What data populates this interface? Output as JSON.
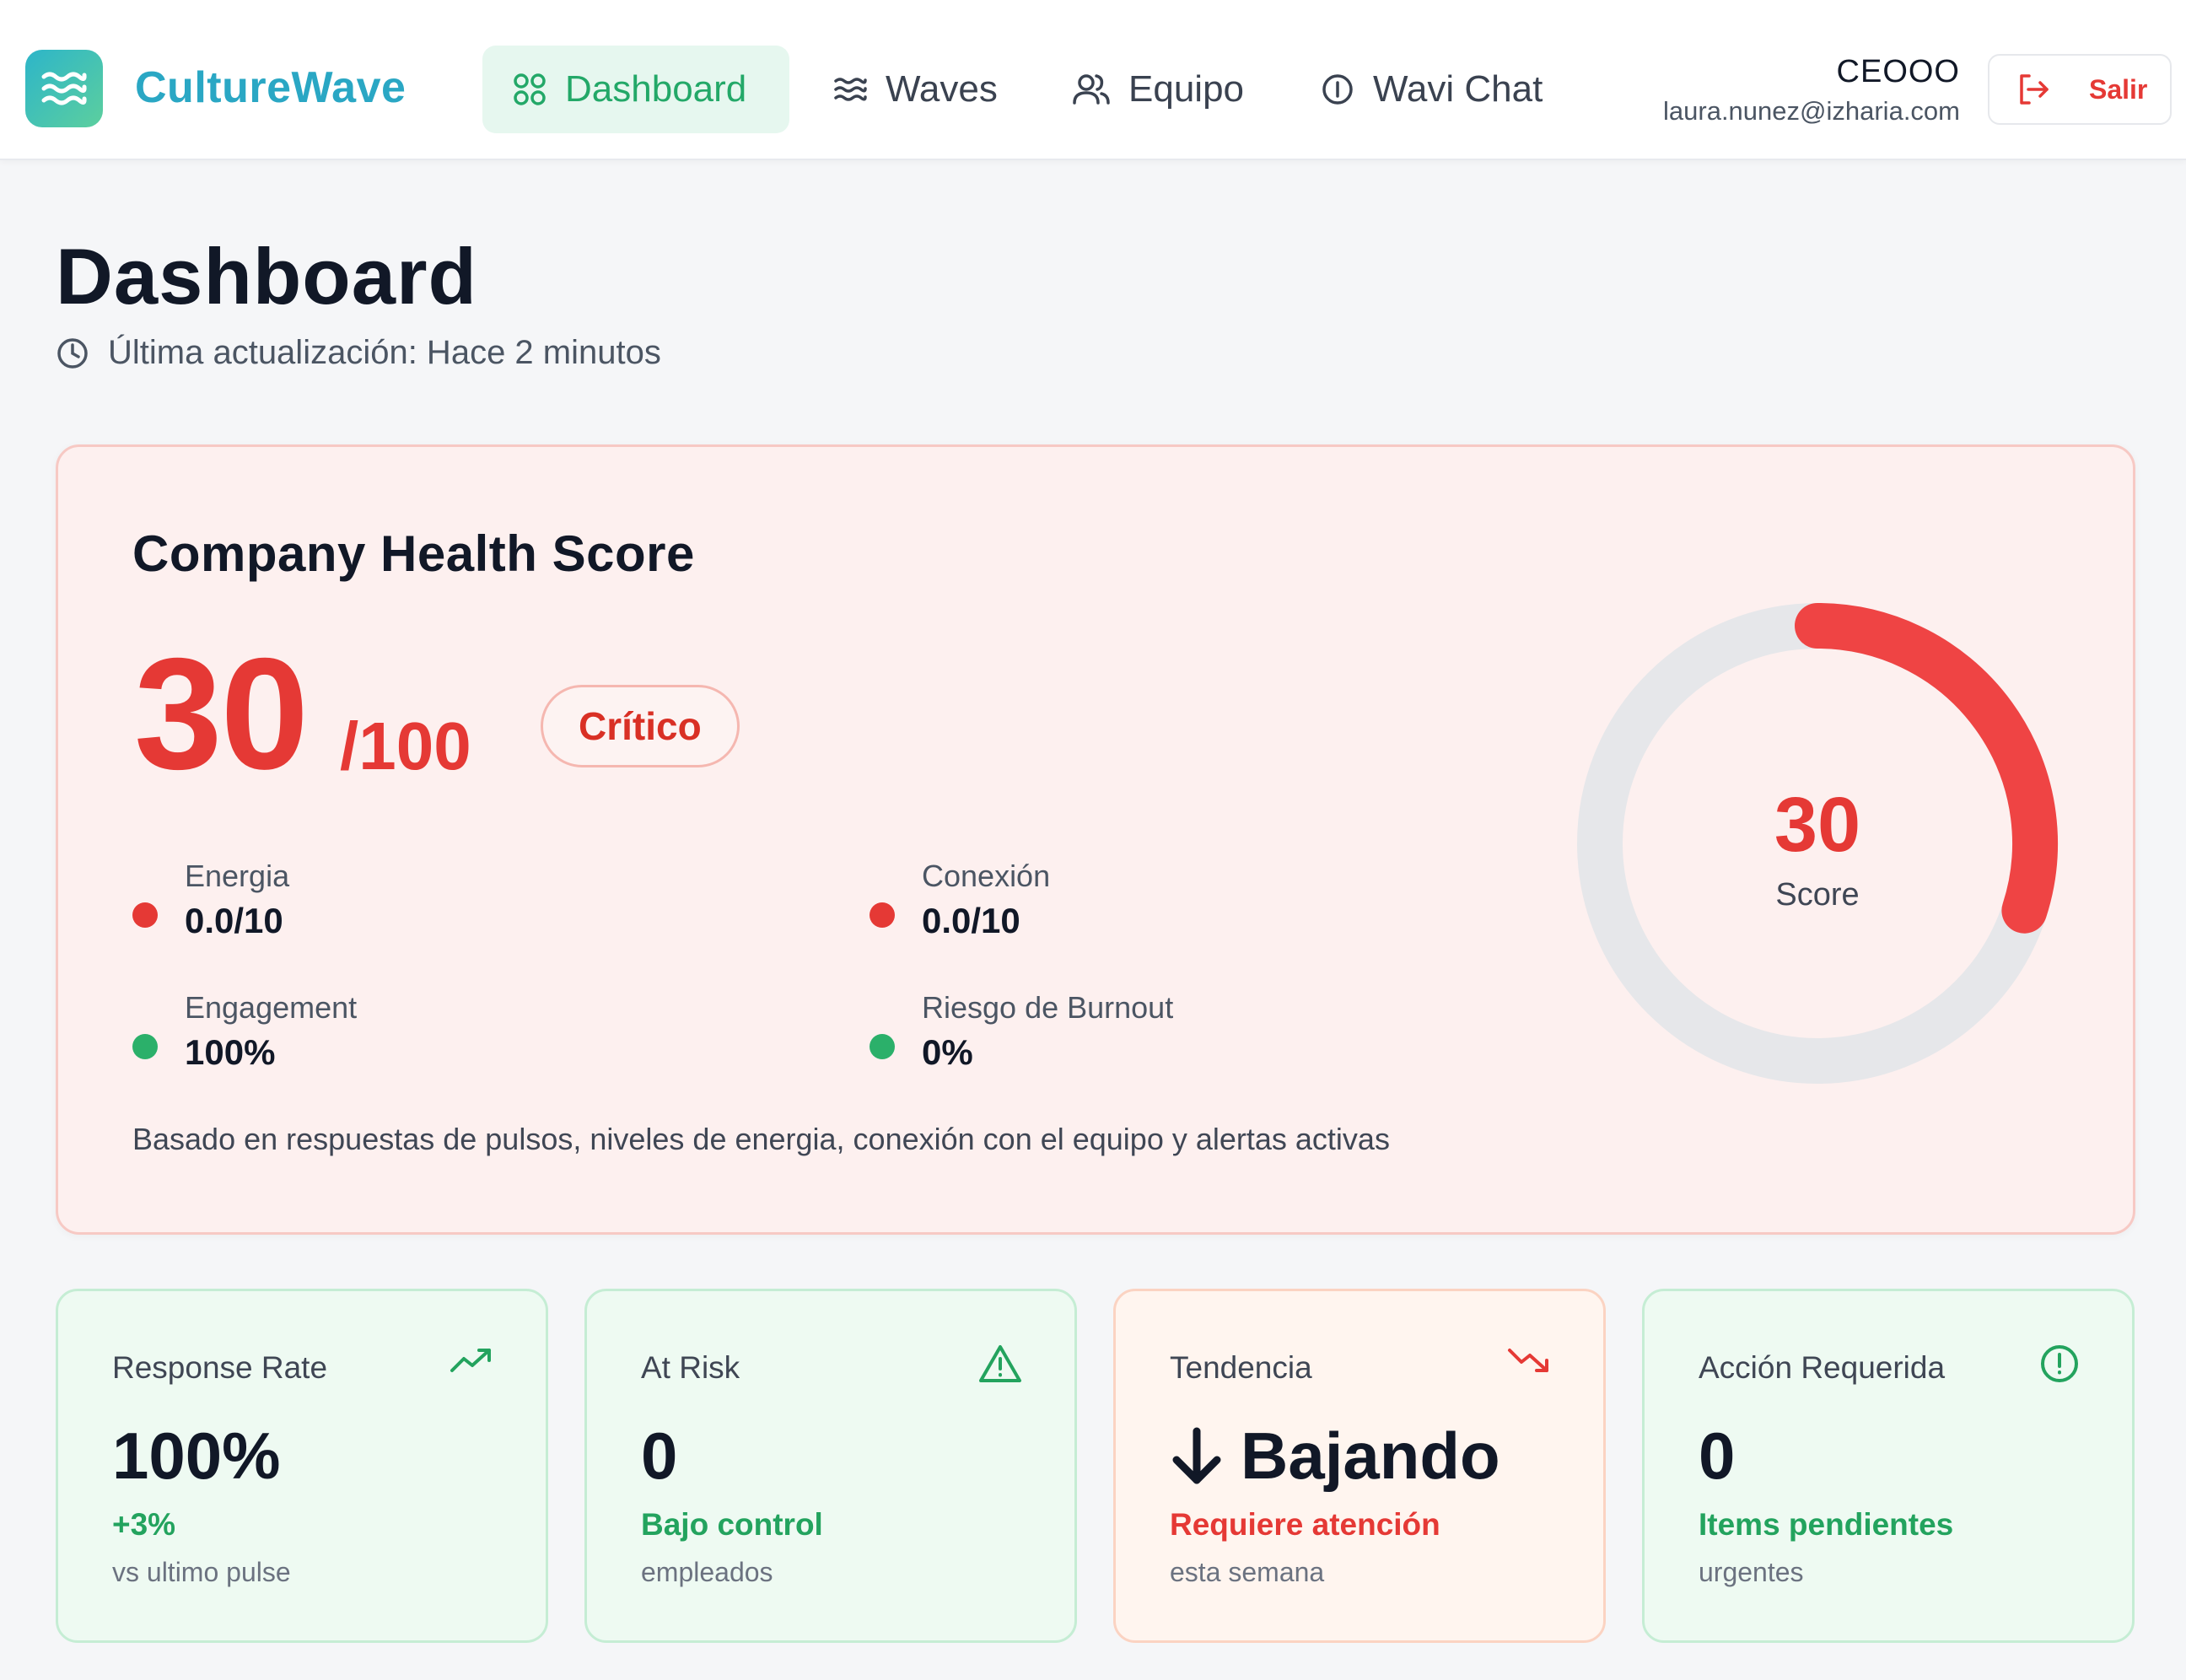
{
  "app": {
    "name": "CultureWave",
    "logo_icon": "waves-icon"
  },
  "nav": [
    {
      "label": "Dashboard",
      "icon": "grid-icon",
      "active": true
    },
    {
      "label": "Waves",
      "icon": "waves-icon",
      "active": false
    },
    {
      "label": "Equipo",
      "icon": "users-icon",
      "active": false
    },
    {
      "label": "Wavi Chat",
      "icon": "info-icon",
      "active": false
    }
  ],
  "user": {
    "name": "CEOOO",
    "email": "laura.nunez@izharia.com",
    "logout_label": "Salir"
  },
  "page": {
    "title": "Dashboard",
    "last_update": "Última actualización: Hace 2 minutos"
  },
  "health": {
    "title": "Company Health Score",
    "score": "30",
    "max": "/100",
    "score_value": 30,
    "score_max": 100,
    "status": "Crítico",
    "gauge_label": "Score",
    "metrics": [
      {
        "label": "Energia",
        "value": "0.0/10",
        "status": "bad"
      },
      {
        "label": "Conexión",
        "value": "0.0/10",
        "status": "bad"
      },
      {
        "label": "Engagement",
        "value": "100%",
        "status": "good"
      },
      {
        "label": "Riesgo de Burnout",
        "value": "0%",
        "status": "good"
      }
    ],
    "note": "Basado en respuestas de pulsos, niveles de energia, conexión con el equipo y alertas activas"
  },
  "stats": [
    {
      "label": "Response Rate",
      "icon": "trending-up-icon",
      "value": "100%",
      "status": "+3%",
      "sub": "vs ultimo pulse"
    },
    {
      "label": "At Risk",
      "icon": "warning-icon",
      "value": "0",
      "status": "Bajo control",
      "sub": "empleados"
    },
    {
      "label": "Tendencia",
      "icon": "trending-down-icon",
      "value": "Bajando",
      "value_icon": "arrow-down-icon",
      "status": "Requiere atención",
      "sub": "esta semana"
    },
    {
      "label": "Acción Requerida",
      "icon": "alert-circle-icon",
      "value": "0",
      "status": "Items pendientes",
      "sub": "urgentes"
    }
  ],
  "colors": {
    "brand": "#2aa7c4",
    "active_nav_bg": "#e6f7ef",
    "active_nav_text": "#23a868",
    "critical": "#e53935",
    "good": "#23a35e",
    "gauge_track": "#e6e7ea"
  }
}
